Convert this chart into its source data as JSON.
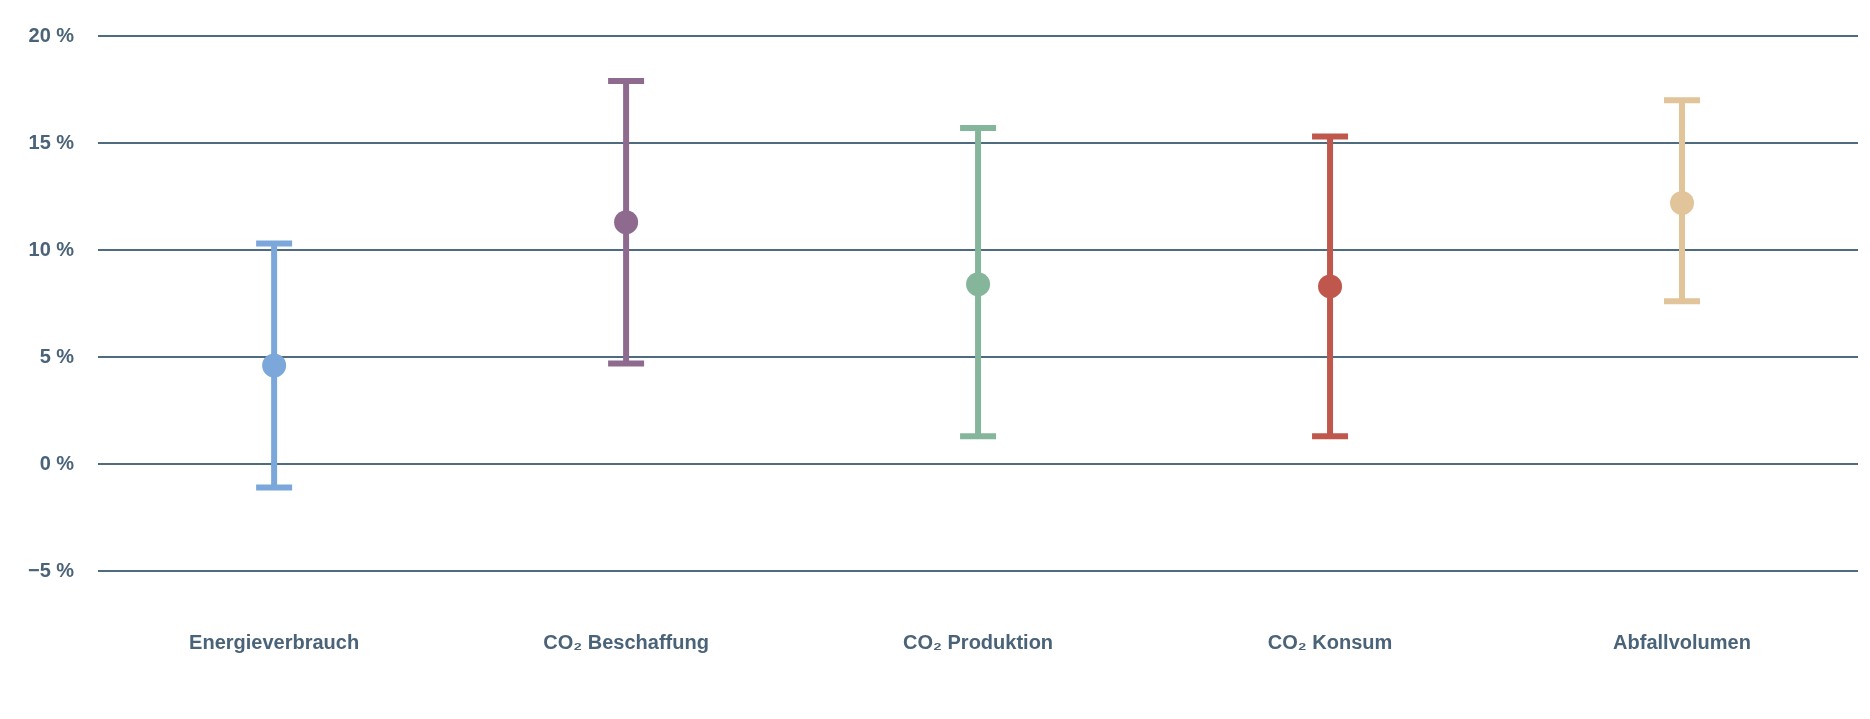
{
  "chart_data": {
    "type": "scatter",
    "categories": [
      "Energieverbrauch",
      "CO₂ Beschaffung",
      "CO₂ Produktion",
      "CO₂ Konsum",
      "Abfallvolumen"
    ],
    "values": [
      4.6,
      11.3,
      8.4,
      8.3,
      12.2
    ],
    "colors": [
      "#7ba7db",
      "#8f6a8f",
      "#85b59b",
      "#c0574c",
      "#e2c49a"
    ],
    "errors": [
      [
        -1.1,
        10.3
      ],
      [
        4.7,
        17.9
      ],
      [
        1.3,
        15.7
      ],
      [
        1.3,
        15.3
      ],
      [
        7.6,
        17.0
      ]
    ],
    "ylim": [
      -5,
      20
    ],
    "yticks": [
      {
        "value": 20,
        "label": "20 %"
      },
      {
        "value": 15,
        "label": "15 %"
      },
      {
        "value": 10,
        "label": "10 %"
      },
      {
        "value": 5,
        "label": "5 %"
      },
      {
        "value": 0,
        "label": "0 %"
      },
      {
        "value": -5,
        "label": "−5 %"
      }
    ],
    "grid": "y",
    "marker": "circle"
  }
}
